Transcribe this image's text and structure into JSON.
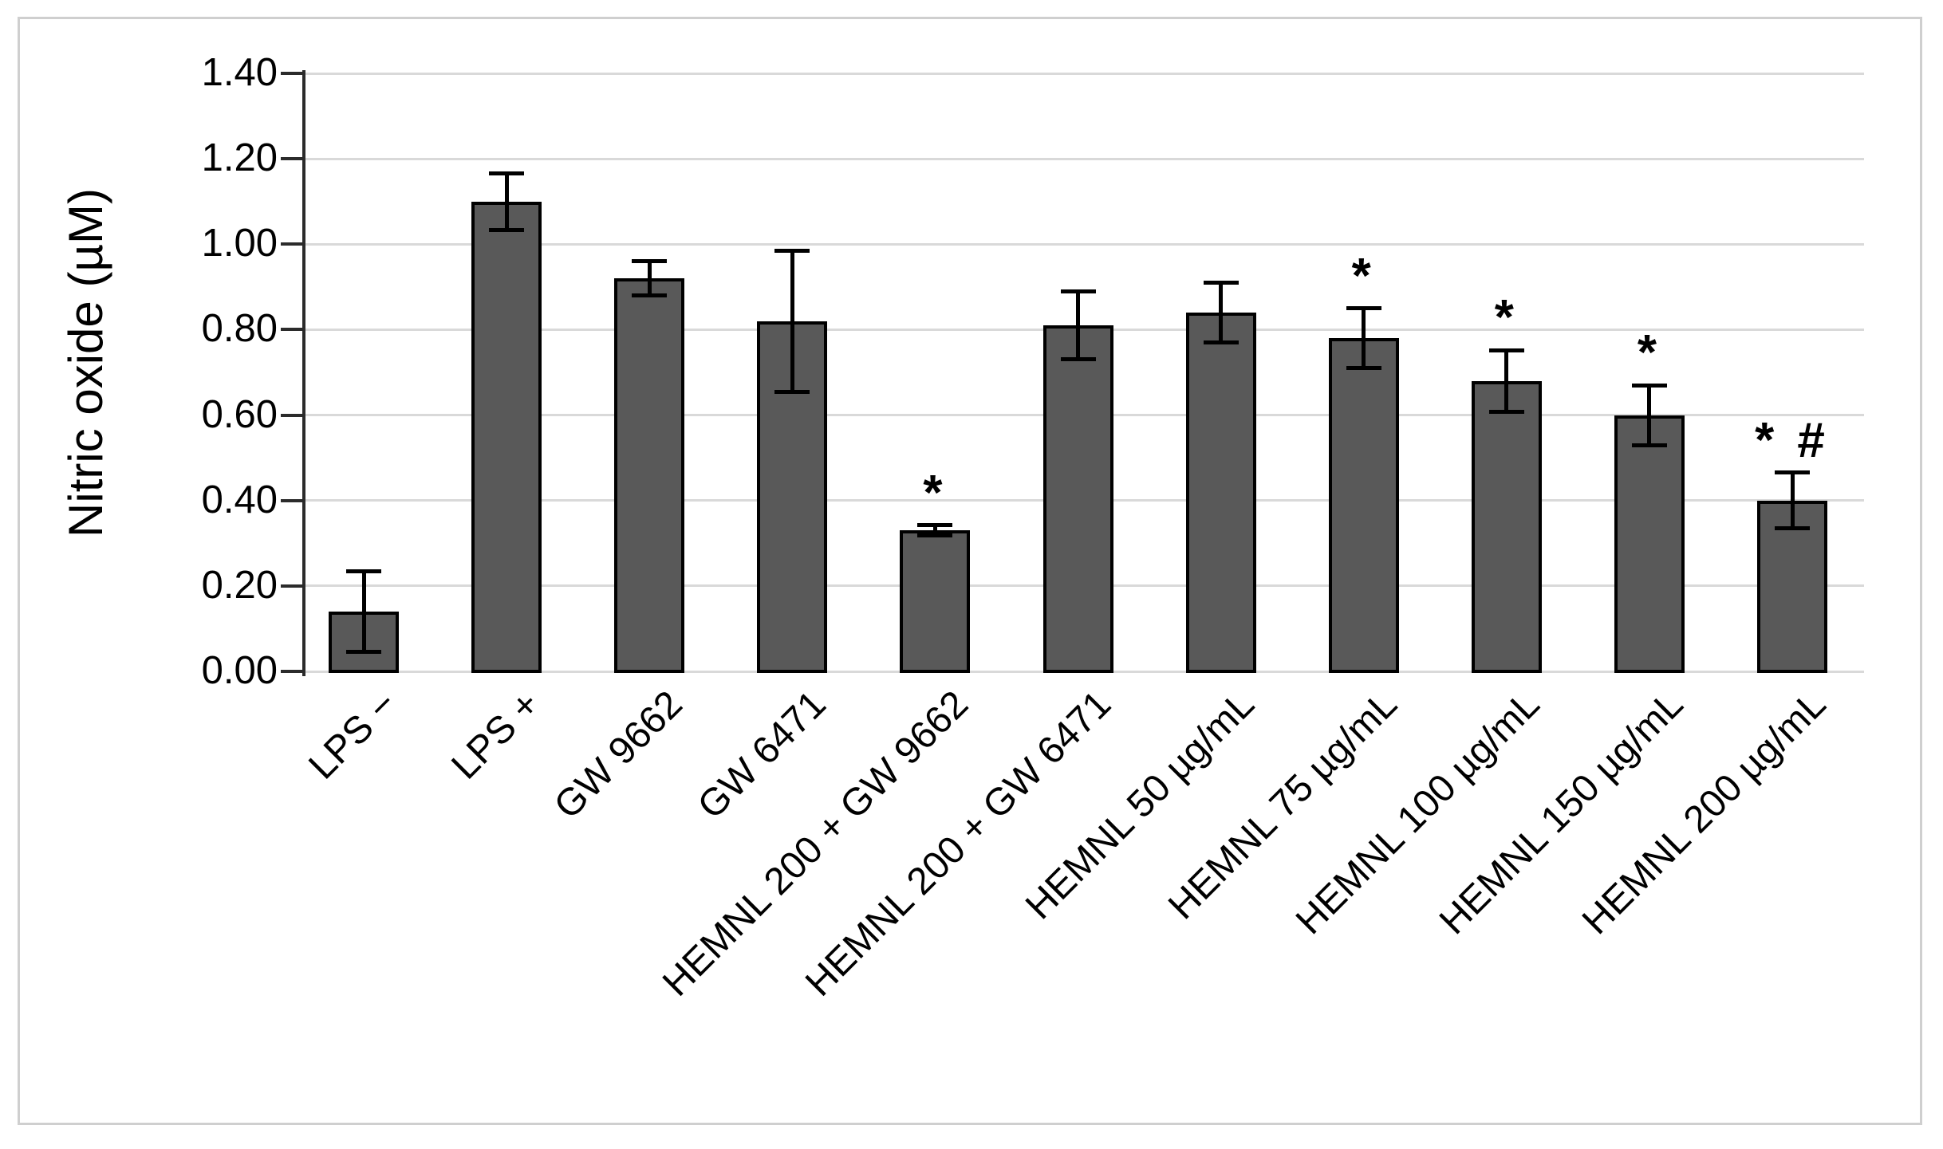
{
  "figure": {
    "background_color": "#ffffff",
    "border_color": "#cfcfcf"
  },
  "chart_data": {
    "type": "bar",
    "title": "",
    "xlabel": "",
    "ylabel": "Nitric oxide (µM)",
    "ylim": [
      0,
      1.4
    ],
    "ytick_step": 0.2,
    "ytick_labels": [
      "0.00",
      "0.20",
      "0.40",
      "0.60",
      "0.80",
      "1.00",
      "1.20",
      "1.40"
    ],
    "grid": "horizontal",
    "legend_position": "none",
    "bar_fill_color": "#595959",
    "bar_border_color": "#000000",
    "gridline_color": "#d9d9d9",
    "axis_color": "#2b2b2b",
    "error_bar_color": "#000000",
    "categories": [
      "LPS −",
      "LPS +",
      "GW 9662",
      "GW 6471",
      "HEMNL 200 + GW 9662",
      "HEMNL 200 + GW 6471",
      "HEMNL 50 µg/mL",
      "HEMNL 75 µg/mL",
      "HEMNL 100 µg/mL",
      "HEMNL 150 µg/mL",
      "HEMNL 200 µg/mL"
    ],
    "values": [
      0.14,
      1.1,
      0.92,
      0.82,
      0.33,
      0.81,
      0.84,
      0.78,
      0.68,
      0.6,
      0.4
    ],
    "errors": [
      0.095,
      0.066,
      0.04,
      0.165,
      0.012,
      0.08,
      0.07,
      0.07,
      0.072,
      0.07,
      0.065
    ],
    "significance_markers": [
      "",
      "",
      "",
      "",
      "*",
      "",
      "",
      "*",
      "*",
      "*",
      "* #"
    ]
  }
}
